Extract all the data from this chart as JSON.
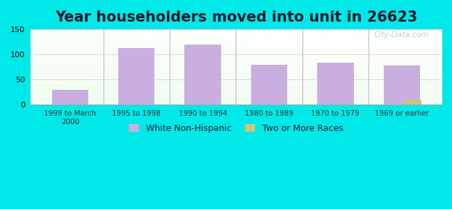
{
  "title": "Year householders moved into unit in 26623",
  "categories": [
    "1999 to March\n2000",
    "1995 to 1998",
    "1990 to 1994",
    "1980 to 1989",
    "1970 to 1979",
    "1969 or earlier"
  ],
  "white_non_hispanic": [
    30,
    113,
    119,
    79,
    83,
    78
  ],
  "two_or_more_races": [
    0,
    0,
    0,
    0,
    0,
    10
  ],
  "bar_color_white": "#c9aee0",
  "bar_color_two": "#c8c87a",
  "bg_outer": "#00e8e8",
  "ylim": [
    0,
    150
  ],
  "yticks": [
    0,
    50,
    100,
    150
  ],
  "title_fontsize": 15,
  "legend_labels": [
    "White Non-Hispanic",
    "Two or More Races"
  ],
  "bar_width": 0.55,
  "two_race_bar_width": 0.25
}
